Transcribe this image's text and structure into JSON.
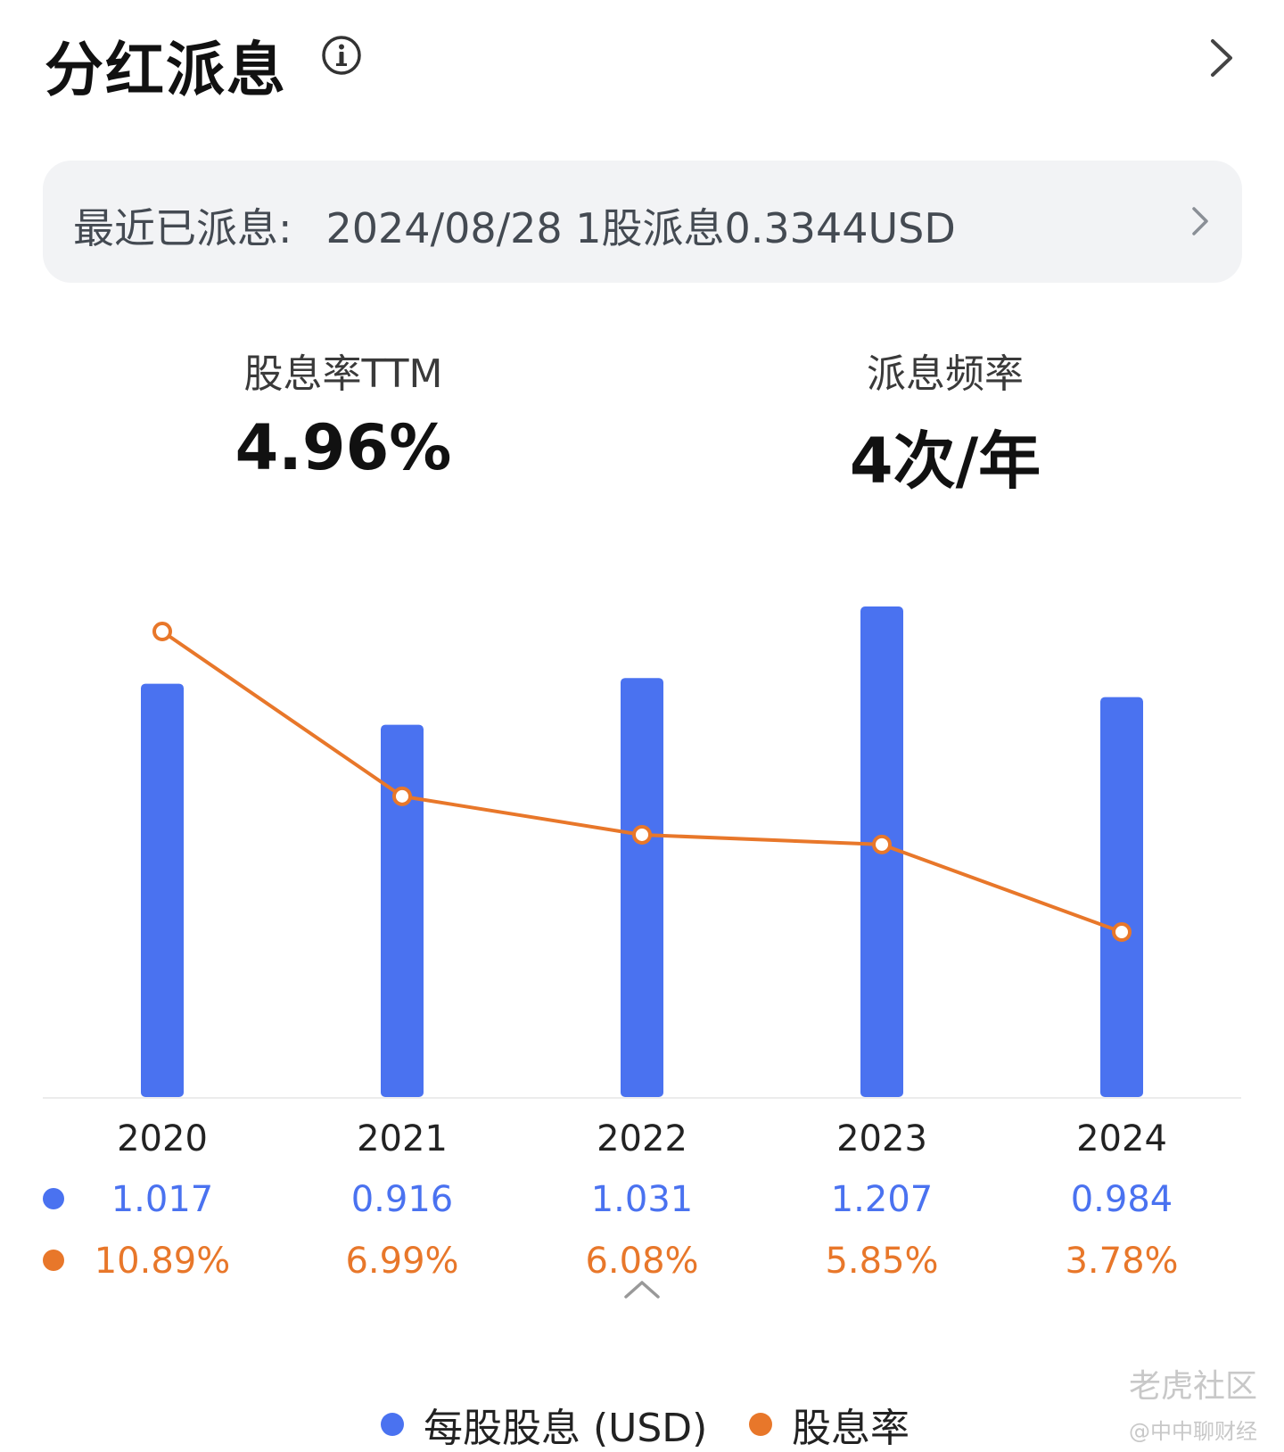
{
  "header": {
    "title": "分红派息"
  },
  "recent": {
    "label": "最近已派息:",
    "value": "2024/08/28 1股派息0.3344USD"
  },
  "stats": {
    "yield_label": "股息率TTM",
    "yield_value": "4.96%",
    "freq_label": "派息频率",
    "freq_value": "4次/年"
  },
  "colors": {
    "bar": "#4a72f0",
    "line": "#e8772a",
    "row_dps": "#4a72f0",
    "row_yield": "#e8772a"
  },
  "chart_data": {
    "type": "bar",
    "categories": [
      "2020",
      "2021",
      "2022",
      "2023",
      "2024"
    ],
    "series": [
      {
        "name": "每股股息 (USD)",
        "kind": "bar",
        "values": [
          1.017,
          0.916,
          1.031,
          1.207,
          0.984
        ],
        "labels": [
          "1.017",
          "0.916",
          "1.031",
          "1.207",
          "0.984"
        ]
      },
      {
        "name": "股息率",
        "kind": "line",
        "unit": "%",
        "values": [
          10.89,
          6.99,
          6.08,
          5.85,
          3.78
        ],
        "labels": [
          "10.89%",
          "6.99%",
          "6.08%",
          "5.85%",
          "3.78%"
        ]
      }
    ],
    "title": "",
    "xlabel": "",
    "ylabel": "",
    "grid": false,
    "legend_position": "bottom"
  },
  "legend": {
    "dps_label": "每股股息 (USD)",
    "yield_label": "股息率"
  },
  "watermark": {
    "text": "老虎社区",
    "sub": "@中中聊财经"
  }
}
